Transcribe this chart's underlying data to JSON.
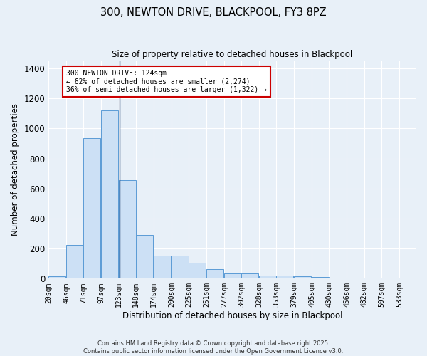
{
  "title_line1": "300, NEWTON DRIVE, BLACKPOOL, FY3 8PZ",
  "title_line2": "Size of property relative to detached houses in Blackpool",
  "xlabel": "Distribution of detached houses by size in Blackpool",
  "ylabel": "Number of detached properties",
  "footer_line1": "Contains HM Land Registry data © Crown copyright and database right 2025.",
  "footer_line2": "Contains public sector information licensed under the Open Government Licence v3.0.",
  "bar_left_edges": [
    20,
    46,
    71,
    97,
    123,
    148,
    174,
    200,
    225,
    251,
    277,
    302,
    328,
    353,
    379,
    405,
    430,
    456,
    482,
    507,
    533
  ],
  "bar_heights": [
    15,
    225,
    935,
    1120,
    655,
    290,
    155,
    155,
    105,
    65,
    35,
    35,
    20,
    20,
    15,
    10,
    0,
    0,
    0,
    8,
    0
  ],
  "bin_width": 25,
  "bar_color": "#cce0f5",
  "bar_edgecolor": "#5b9bd5",
  "property_size": 124,
  "annotation_text": "300 NEWTON DRIVE: 124sqm\n← 62% of detached houses are smaller (2,274)\n36% of semi-detached houses are larger (1,322) →",
  "annotation_box_color": "#ffffff",
  "annotation_box_edgecolor": "#cc0000",
  "ylim": [
    0,
    1450
  ],
  "yticks": [
    0,
    200,
    400,
    600,
    800,
    1000,
    1200,
    1400
  ],
  "bg_color": "#e8f0f8",
  "grid_color": "#ffffff",
  "vline_color": "#1a3a6b"
}
